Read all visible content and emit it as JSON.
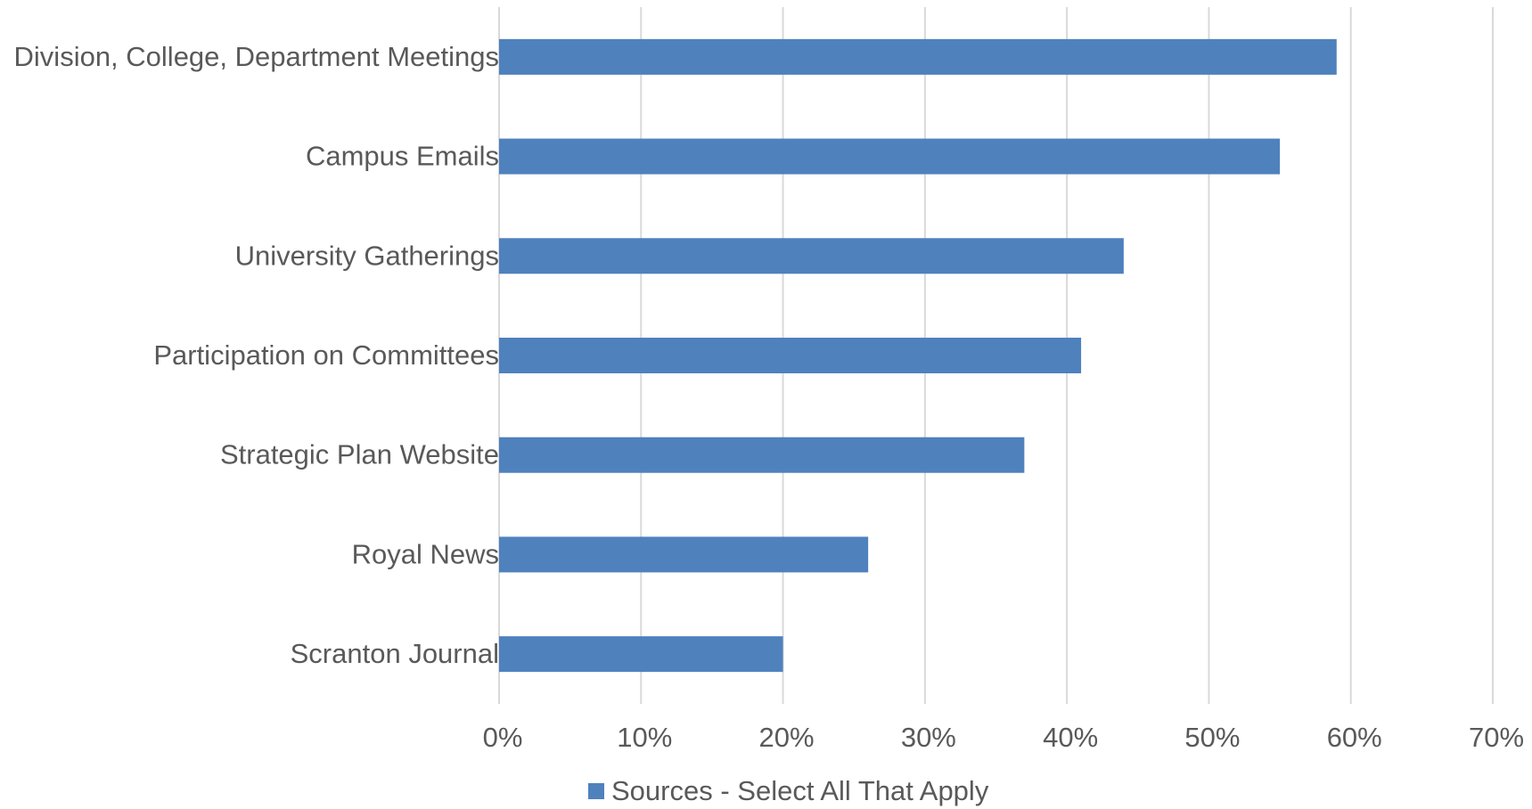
{
  "chart_data": {
    "type": "bar",
    "orientation": "horizontal",
    "categories": [
      "Division, College, Department Meetings",
      "Campus Emails",
      "University Gatherings",
      "Participation on Committees",
      "Strategic Plan Website",
      "Royal News",
      "Scranton Journal"
    ],
    "series": [
      {
        "name": "Sources - Select All That Apply",
        "values": [
          59,
          55,
          44,
          41,
          37,
          26,
          20
        ],
        "color": "#4f81bd"
      }
    ],
    "x_ticks": [
      "0%",
      "10%",
      "20%",
      "30%",
      "40%",
      "50%",
      "60%",
      "70%"
    ],
    "xlim": [
      0,
      70
    ],
    "x_unit": "%",
    "grid": "vertical",
    "legend_position": "bottom",
    "title": "",
    "xlabel": "",
    "ylabel": ""
  },
  "colors": {
    "bar": "#4f81bd",
    "grid": "#d9d9d9",
    "text": "#595959"
  }
}
